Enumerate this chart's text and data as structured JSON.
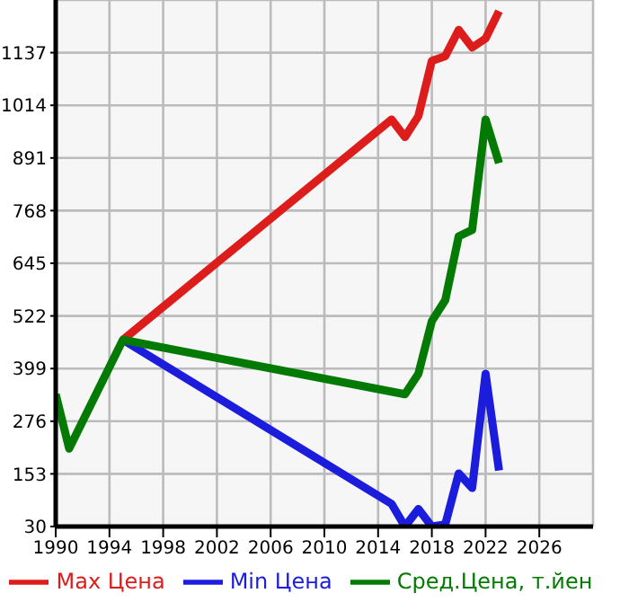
{
  "chart_data": {
    "type": "line",
    "xlim": [
      1990,
      2030
    ],
    "xticks": [
      1990,
      1994,
      1998,
      2002,
      2006,
      2010,
      2014,
      2018,
      2022,
      2026
    ],
    "ylim": [
      30,
      1260
    ],
    "yticks": [
      30,
      153,
      276,
      399,
      522,
      645,
      768,
      891,
      1014,
      1137
    ],
    "grid": true,
    "legend": "bottom",
    "marker": "none",
    "line_style": "solid",
    "series": [
      {
        "name": "Max Цена",
        "color": "#dd1c1c",
        "x": [
          1995,
          2015,
          2016,
          2017,
          2018,
          2019,
          2020,
          2021,
          2022,
          2023
        ],
        "values": [
          466,
          981,
          940,
          989,
          1118,
          1129,
          1190,
          1149,
          1170,
          1234
        ]
      },
      {
        "name": "Min Цена",
        "color": "#1c1cdd",
        "x": [
          1995,
          2015,
          2016,
          2017,
          2018,
          2019,
          2020,
          2021,
          2022,
          2023
        ],
        "values": [
          466,
          83,
          30,
          71,
          30,
          35,
          154,
          120,
          387,
          161
        ]
      },
      {
        "name": "Сред.Цена, т.йен",
        "color": "#037a03",
        "x": [
          1990,
          1991,
          1995,
          2016,
          2017,
          2018,
          2019,
          2020,
          2021,
          2022,
          2023
        ],
        "values": [
          339,
          212,
          466,
          339,
          387,
          510,
          559,
          708,
          723,
          981,
          879
        ]
      }
    ]
  }
}
